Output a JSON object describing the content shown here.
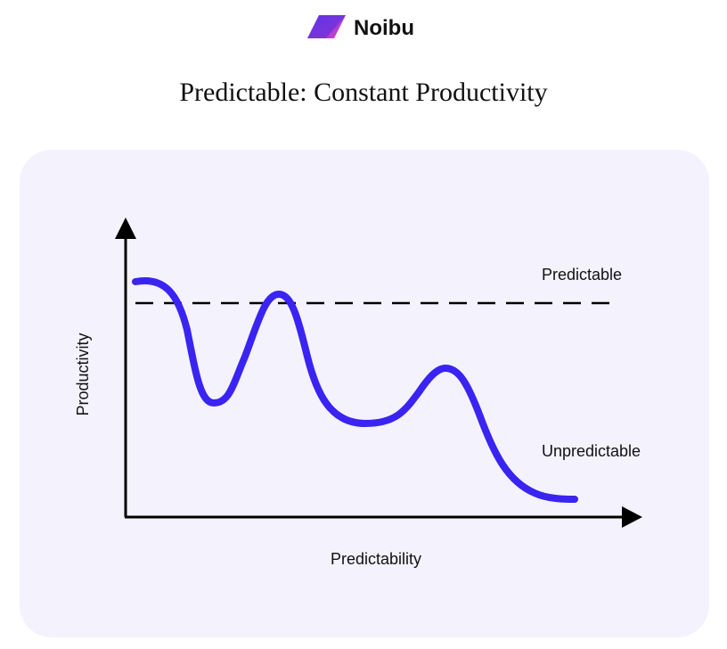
{
  "header": {
    "brand": "Noibu",
    "title": "Predictable: Constant Productivity"
  },
  "diagram": {
    "y_axis_label": "Productivity",
    "x_axis_label": "Predictability",
    "upper_label": "Predictable",
    "lower_label": "Unpredictable"
  }
}
